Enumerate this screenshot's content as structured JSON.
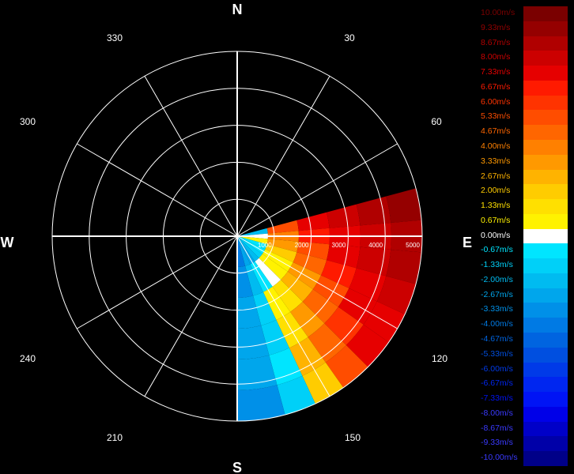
{
  "chart_data": {
    "type": "polar-velocity-sector",
    "title": "",
    "compass": {
      "north": "N",
      "east": "E",
      "south": "S",
      "west": "W"
    },
    "bearing_labels": [
      "30",
      "60",
      "120",
      "150",
      "210",
      "240",
      "300",
      "330"
    ],
    "range_labels": [
      "1000",
      "2000",
      "3000",
      "4000",
      "5000"
    ],
    "range_unit": "",
    "rmax": 5000,
    "data_sector_deg": [
      75,
      180
    ],
    "legend_unit": "m/s",
    "legend": [
      {
        "label": "10.00m/s",
        "value": 10.0,
        "color": "#7a0000"
      },
      {
        "label": "9.33m/s",
        "value": 9.33,
        "color": "#950000"
      },
      {
        "label": "8.67m/s",
        "value": 8.67,
        "color": "#b00000"
      },
      {
        "label": "8.00m/s",
        "value": 8.0,
        "color": "#cc0000"
      },
      {
        "label": "7.33m/s",
        "value": 7.33,
        "color": "#e60000"
      },
      {
        "label": "6.67m/s",
        "value": 6.67,
        "color": "#ff1a00"
      },
      {
        "label": "6.00m/s",
        "value": 6.0,
        "color": "#ff3300"
      },
      {
        "label": "5.33m/s",
        "value": 5.33,
        "color": "#ff4d00"
      },
      {
        "label": "4.67m/s",
        "value": 4.67,
        "color": "#ff6600"
      },
      {
        "label": "4.00m/s",
        "value": 4.0,
        "color": "#ff8000"
      },
      {
        "label": "3.33m/s",
        "value": 3.33,
        "color": "#ff9900"
      },
      {
        "label": "2.67m/s",
        "value": 2.67,
        "color": "#ffb300"
      },
      {
        "label": "2.00m/s",
        "value": 2.0,
        "color": "#ffcc00"
      },
      {
        "label": "1.33m/s",
        "value": 1.33,
        "color": "#ffe000"
      },
      {
        "label": "0.67m/s",
        "value": 0.67,
        "color": "#fff200"
      },
      {
        "label": "0.00m/s",
        "value": 0.0,
        "color": "#ffffff"
      },
      {
        "label": "-0.67m/s",
        "value": -0.67,
        "color": "#00e5ff"
      },
      {
        "label": "-1.33m/s",
        "value": -1.33,
        "color": "#00d0f8"
      },
      {
        "label": "-2.00m/s",
        "value": -2.0,
        "color": "#00bbf0"
      },
      {
        "label": "-2.67m/s",
        "value": -2.67,
        "color": "#00a6ec"
      },
      {
        "label": "-3.33m/s",
        "value": -3.33,
        "color": "#0090e8"
      },
      {
        "label": "-4.00m/s",
        "value": -4.0,
        "color": "#007ae4"
      },
      {
        "label": "-4.67m/s",
        "value": -4.67,
        "color": "#0064e0"
      },
      {
        "label": "-5.33m/s",
        "value": -5.33,
        "color": "#004fe0"
      },
      {
        "label": "-6.00m/s",
        "value": -6.0,
        "color": "#003ae8"
      },
      {
        "label": "-6.67m/s",
        "value": -6.67,
        "color": "#0026f0"
      },
      {
        "label": "-7.33m/s",
        "value": -7.33,
        "color": "#0014f5"
      },
      {
        "label": "-8.00m/s",
        "value": -8.0,
        "color": "#0000e8"
      },
      {
        "label": "-8.67m/s",
        "value": -8.67,
        "color": "#0000c8"
      },
      {
        "label": "-9.33m/s",
        "value": -9.33,
        "color": "#0000a8"
      },
      {
        "label": "-10.00m/s",
        "value": -10.0,
        "color": "#000088"
      }
    ],
    "sectors": [
      {
        "azimuth": [
          75,
          85
        ],
        "velocity": [
          -2,
          5,
          7,
          8,
          8.5,
          9
        ]
      },
      {
        "azimuth": [
          85,
          95
        ],
        "velocity": [
          0,
          4,
          6.5,
          7.5,
          8,
          8.5
        ]
      },
      {
        "azimuth": [
          95,
          105
        ],
        "velocity": [
          0.5,
          3,
          5.5,
          7,
          8,
          8.5
        ]
      },
      {
        "azimuth": [
          105,
          115
        ],
        "velocity": [
          -0.5,
          2,
          4.5,
          6.5,
          7.5,
          8
        ]
      },
      {
        "azimuth": [
          115,
          125
        ],
        "velocity": [
          -1,
          1,
          3.5,
          5.5,
          7,
          7.5
        ]
      },
      {
        "azimuth": [
          125,
          135
        ],
        "velocity": [
          -1.5,
          0.5,
          2.5,
          4.5,
          6,
          7
        ]
      },
      {
        "azimuth": [
          135,
          145
        ],
        "velocity": [
          -2,
          0,
          1.5,
          3,
          4.5,
          5
        ]
      },
      {
        "azimuth": [
          145,
          155
        ],
        "velocity": [
          -2.5,
          -1,
          0.5,
          1.5,
          2.5,
          2
        ]
      },
      {
        "azimuth": [
          155,
          165
        ],
        "velocity": [
          -3,
          -2,
          -1.5,
          -1.5,
          -1,
          -1.5
        ]
      },
      {
        "azimuth": [
          165,
          180
        ],
        "velocity": [
          -4,
          -3.5,
          -3,
          -3,
          -3,
          -3.5
        ]
      }
    ]
  }
}
